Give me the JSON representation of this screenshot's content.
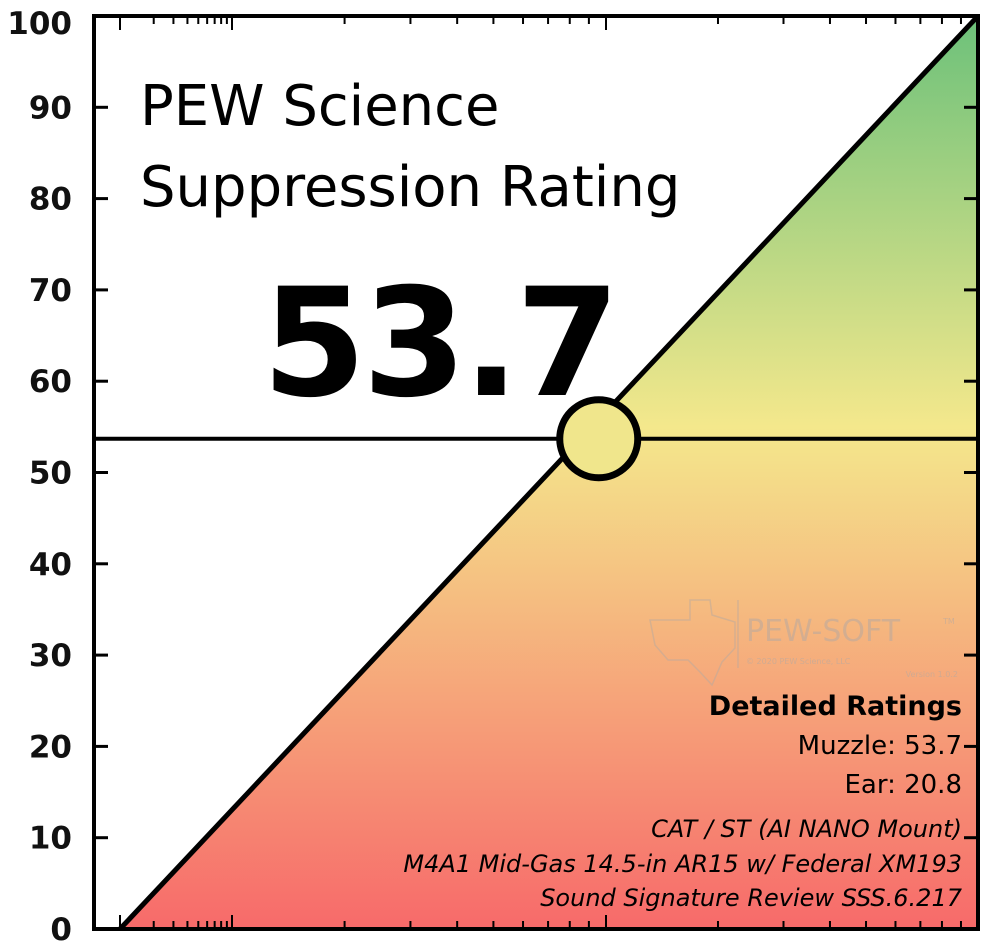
{
  "title_lines": [
    "PEW Science",
    "Suppression Rating"
  ],
  "rating_display": "53.7",
  "chart_data": {
    "type": "line",
    "ylim": [
      0,
      100
    ],
    "yticks": [
      0,
      10,
      20,
      30,
      40,
      50,
      60,
      70,
      80,
      90,
      100
    ],
    "x_scale": "log",
    "series": [
      {
        "x": [
          0,
          100
        ],
        "y": [
          0,
          100
        ]
      }
    ],
    "rating_value": 53.7,
    "grid": false,
    "gradient_colors": {
      "top": "#6cc17a",
      "middle": "#f4e88c",
      "bottom": "#f76a6a"
    },
    "marker_color": "#f0e68c"
  },
  "details": {
    "heading": "Detailed Ratings",
    "muzzle": "Muzzle: 53.7",
    "ear": "Ear: 20.8"
  },
  "info": {
    "product": "CAT / ST (AI NANO Mount)",
    "host": "M4A1 Mid-Gas 14.5-in AR15 w/ Federal XM193",
    "review": "Sound Signature Review SSS.6.217"
  },
  "watermark": {
    "brand": "PEW-SOFT",
    "trademark": "TM",
    "copyright": "© 2020 PEW Science, LLC",
    "version": "Version 1.0.2"
  }
}
